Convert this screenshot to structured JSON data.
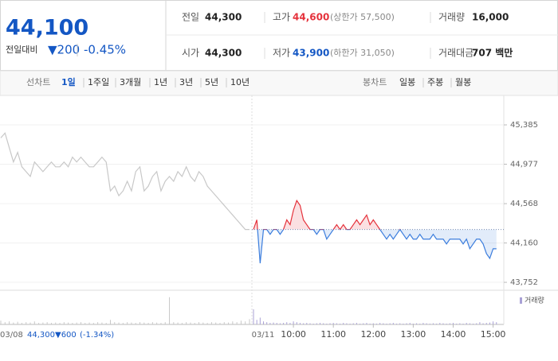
{
  "quote": {
    "price": "44,100",
    "change_label": "전일대비",
    "change": "▼200",
    "change_pct": "-0.45%",
    "rows": [
      [
        {
          "label": "전일",
          "value": "44,300"
        },
        {
          "label": "고가",
          "value": "44,600",
          "extra": "(상한가 57,500)"
        },
        {
          "label": "거래량",
          "value": "16,000"
        }
      ],
      [
        {
          "label": "시가",
          "value": "44,300"
        },
        {
          "label": "저가",
          "value": "43,900",
          "extra": "(하한가 31,050)"
        },
        {
          "label": "거래대금",
          "value": "707 백만"
        }
      ]
    ]
  },
  "tabs": {
    "line_label": "선차트",
    "line_tabs": [
      "1일",
      "1주일",
      "3개월",
      "1년",
      "3년",
      "5년",
      "10년"
    ],
    "candle_label": "봉차트",
    "candle_tabs": [
      "일봉",
      "주봉",
      "월봉"
    ]
  },
  "chart_data": {
    "type": "line",
    "ylim": [
      43670,
      45674
    ],
    "yticks": [
      {
        "value": 45385,
        "label": "45,385"
      },
      {
        "value": 44977,
        "label": "44,977"
      },
      {
        "value": 44568,
        "label": "44,568"
      },
      {
        "value": 44160,
        "label": "44,160"
      },
      {
        "value": 43752,
        "label": "43,752"
      }
    ],
    "baseline": 44300,
    "up_color": "#e5323c",
    "down_color": "#3b7ddd",
    "prev_color": "#c8c8c8",
    "prev_day": {
      "date": "03/08",
      "close": "44,300",
      "change": "▼600",
      "change_pct": "(-1.34%)",
      "values": [
        45250,
        45300,
        45150,
        45000,
        45100,
        44950,
        44900,
        44850,
        45000,
        44950,
        44900,
        44950,
        45000,
        44950,
        44950,
        45000,
        44950,
        45050,
        45000,
        45050,
        45000,
        44950,
        44950,
        45000,
        45050,
        45000,
        44700,
        44750,
        44650,
        44700,
        44800,
        44700,
        44900,
        44950,
        44700,
        44750,
        44850,
        44900,
        44700,
        44800,
        44850,
        44800,
        44900,
        44850,
        44950,
        44850,
        44800,
        44900,
        44850,
        44750,
        44700,
        44650,
        44600,
        44550,
        44500,
        44450,
        44400,
        44350,
        44300,
        44300
      ],
      "volume": [
        5000,
        3000,
        4000,
        2500,
        3500,
        2000,
        3000,
        2500,
        4000,
        2000,
        2500,
        3000,
        2000,
        2500,
        2000,
        3000,
        2500,
        2000,
        2500,
        3000,
        2000,
        2500,
        2000,
        3000,
        2500,
        2000,
        6000,
        3000,
        2500,
        2000,
        3000,
        2500,
        2000,
        3000,
        2500,
        2000,
        3000,
        2500,
        2000,
        3000,
        36000,
        3000,
        2500,
        2000,
        3000,
        2500,
        2000,
        3000,
        2500,
        2000,
        3000,
        2500,
        2000,
        3000,
        2500,
        4000,
        3000,
        5000,
        4000,
        7000
      ]
    },
    "today": {
      "date": "03/11",
      "x": [
        "09:00",
        "09:05",
        "09:10",
        "09:15",
        "09:20",
        "09:25",
        "09:30",
        "09:35",
        "09:40",
        "09:45",
        "09:50",
        "09:55",
        "10:00",
        "10:05",
        "10:10",
        "10:15",
        "10:20",
        "10:25",
        "10:30",
        "10:35",
        "10:40",
        "10:45",
        "10:50",
        "10:55",
        "11:00",
        "11:05",
        "11:10",
        "11:15",
        "11:20",
        "11:25",
        "11:30",
        "11:35",
        "11:40",
        "11:45",
        "11:50",
        "11:55",
        "12:00",
        "12:05",
        "12:10",
        "12:15",
        "12:20",
        "12:25",
        "12:30",
        "12:35",
        "12:40",
        "12:45",
        "12:50",
        "12:55",
        "13:00",
        "13:05",
        "13:10",
        "13:15",
        "13:20",
        "13:25",
        "13:30",
        "13:35",
        "13:40",
        "13:45",
        "13:50",
        "13:55",
        "14:00",
        "14:05",
        "14:10",
        "14:15",
        "14:20",
        "14:25",
        "14:30",
        "14:35",
        "14:40",
        "14:45",
        "14:50",
        "14:55",
        "15:00",
        "15:05"
      ],
      "values": [
        44300,
        44400,
        43950,
        44300,
        44300,
        44250,
        44300,
        44300,
        44250,
        44300,
        44400,
        44350,
        44500,
        44600,
        44550,
        44400,
        44350,
        44300,
        44300,
        44250,
        44300,
        44300,
        44200,
        44250,
        44300,
        44350,
        44300,
        44350,
        44300,
        44300,
        44350,
        44400,
        44350,
        44400,
        44450,
        44350,
        44400,
        44350,
        44300,
        44250,
        44200,
        44250,
        44200,
        44250,
        44300,
        44250,
        44200,
        44250,
        44200,
        44200,
        44250,
        44200,
        44200,
        44200,
        44250,
        44200,
        44200,
        44200,
        44150,
        44200,
        44200,
        44200,
        44200,
        44150,
        44200,
        44100,
        44150,
        44200,
        44200,
        44150,
        44050,
        44000,
        44100,
        44100
      ],
      "volume": [
        20000,
        6000,
        9000,
        4000,
        3000,
        2000,
        2500,
        2000,
        1500,
        2000,
        3000,
        2000,
        4000,
        3000,
        2000,
        1500,
        2000,
        1500,
        1000,
        1500,
        2000,
        1500,
        1000,
        1500,
        2000,
        1500,
        1000,
        2000,
        1500,
        1000,
        1500,
        2000,
        1000,
        1500,
        2000,
        1000,
        1500,
        1000,
        2000,
        1500,
        1000,
        1500,
        2000,
        1000,
        1500,
        1000,
        1500,
        2000,
        1000,
        1500,
        1000,
        2000,
        1500,
        1000,
        1500,
        1000,
        2000,
        1500,
        1000,
        1500,
        2000,
        1000,
        1500,
        1000,
        2000,
        1500,
        1000,
        1500,
        3000,
        1500,
        2000,
        2500,
        4000,
        3000
      ]
    },
    "volume_name": "거래량",
    "volume_color": "#a9a1d6",
    "volume_ylim": [
      0,
      40000
    ],
    "xticks": [
      "10:00",
      "11:00",
      "12:00",
      "13:00",
      "14:00",
      "15:00"
    ]
  }
}
